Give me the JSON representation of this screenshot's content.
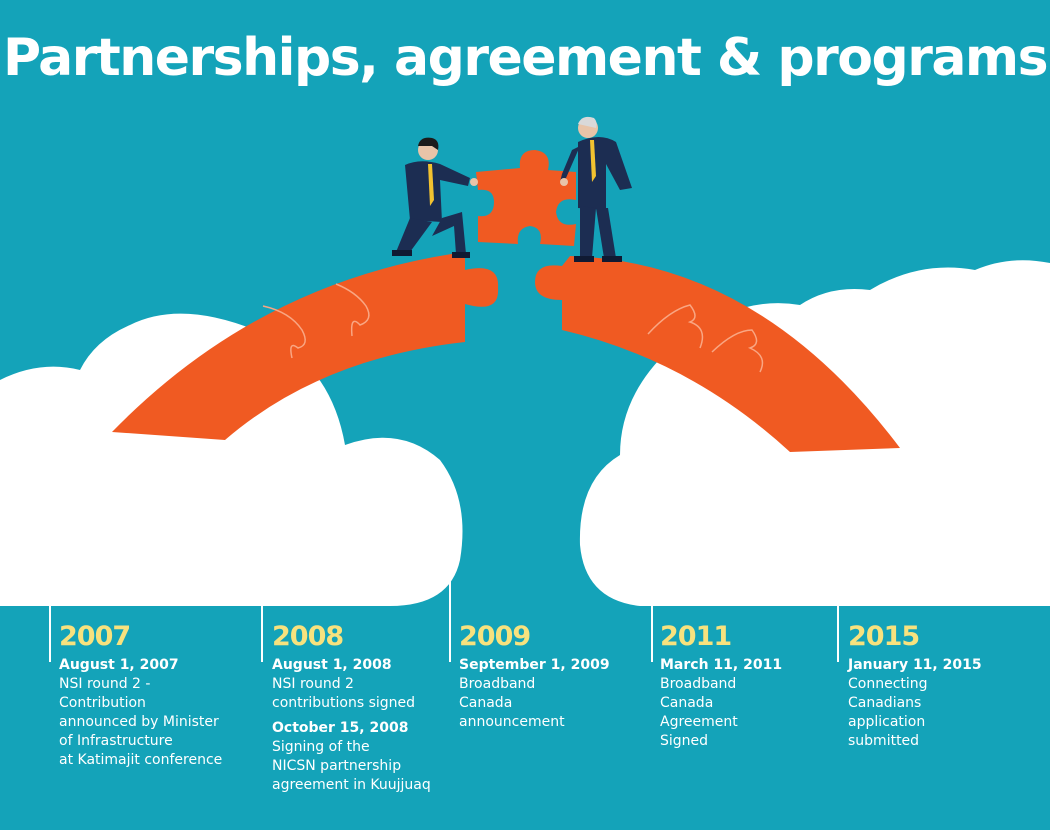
{
  "title": "Partnerships, agreement  & programs",
  "colors": {
    "background": "#14a3b9",
    "cloud": "#ffffff",
    "bridge": "#f05a22",
    "year": "#f7e27e",
    "suit": "#1c2d52"
  },
  "timeline": [
    {
      "year": "2007",
      "events": [
        {
          "date": "August 1, 2007",
          "lines": [
            "NSI round 2 -",
            "Contribution",
            "announced by Minister",
            "of Infrastructure",
            "at Katimajit conference"
          ]
        }
      ]
    },
    {
      "year": "2008",
      "events": [
        {
          "date": "August 1, 2008",
          "lines": [
            "NSI round 2",
            "contributions signed"
          ]
        },
        {
          "date": "October 15, 2008",
          "lines": [
            "Signing of the",
            "NICSN partnership",
            "agreement in Kuujjuaq"
          ]
        }
      ]
    },
    {
      "year": "2009",
      "events": [
        {
          "date": "September 1, 2009",
          "lines": [
            "Broadband",
            "Canada",
            "announcement"
          ]
        }
      ]
    },
    {
      "year": "2011",
      "events": [
        {
          "date": "March 11, 2011",
          "lines": [
            "Broadband",
            "Canada",
            "Agreement",
            "Signed"
          ]
        }
      ]
    },
    {
      "year": "2015",
      "events": [
        {
          "date": "January 11, 2015",
          "lines": [
            "Connecting",
            "Canadians",
            "application",
            "submitted"
          ]
        }
      ]
    }
  ]
}
